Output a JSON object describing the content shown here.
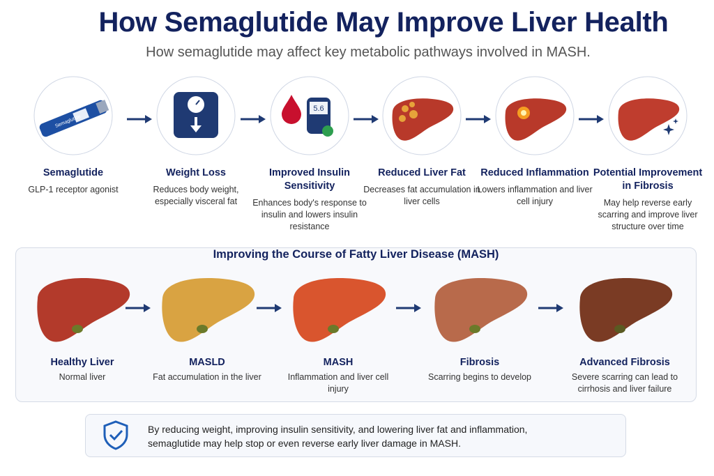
{
  "header": {
    "title": "How Semaglutide May Improve Liver Health",
    "subtitle": "How semaglutide may affect key metabolic pathways involved in MASH."
  },
  "steps": [
    {
      "title": "Semaglutide",
      "description": "GLP-1 receptor agonist",
      "icon_label": "Semaglutide"
    },
    {
      "title": "Weight Loss",
      "description": "Reduces body weight, especially visceral fat"
    },
    {
      "title": "Improved Insulin Sensitivity",
      "description": "Enhances body's response to insulin and lowers insulin resistance",
      "icon_label": "5.6"
    },
    {
      "title": "Reduced Liver Fat",
      "description": "Decreases fat accumulation in liver cells"
    },
    {
      "title": "Reduced Inflammation",
      "description": "Lowers inflammation and liver cell injury"
    },
    {
      "title": "Potential Improvement in Fibrosis",
      "description": "May help reverse early scarring and improve liver structure over time"
    }
  ],
  "stages": {
    "title": "Improving the Course of Fatty Liver Disease (MASH)",
    "items": [
      {
        "name": "Healthy Liver",
        "description": "Normal liver"
      },
      {
        "name": "MASLD",
        "description": "Fat accumulation in the liver"
      },
      {
        "name": "MASH",
        "description": "Inflammation and liver cell injury"
      },
      {
        "name": "Fibrosis",
        "description": "Scarring begins to develop"
      },
      {
        "name": "Advanced Fibrosis",
        "description": "Severe scarring can lead to cirrhosis and liver failure"
      }
    ]
  },
  "note": {
    "text": "By reducing weight, improving insulin sensitivity, and lowering liver fat and inflammation, semaglutide may help stop or even reverse early liver damage in MASH."
  }
}
